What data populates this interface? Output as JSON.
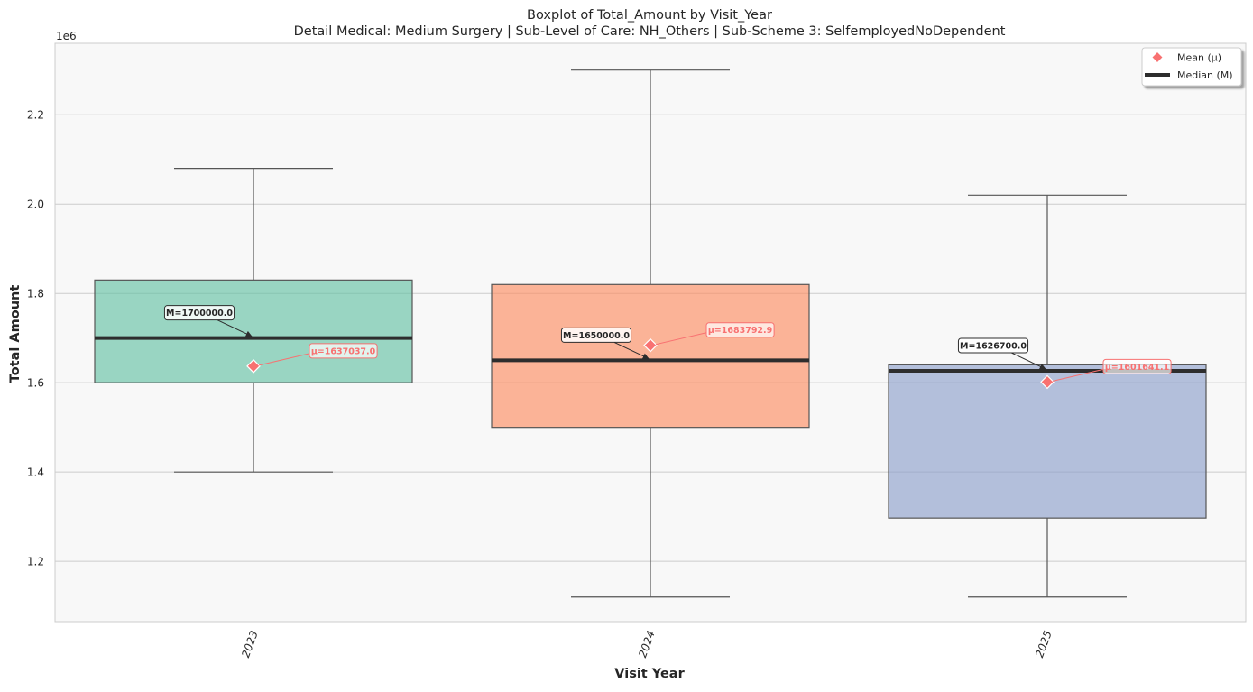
{
  "chart_data": {
    "type": "box",
    "title": "Boxplot of Total_Amount by Visit_Year",
    "subtitle": "Detail Medical: Medium Surgery | Sub-Level of Care: NH_Others | Sub-Scheme 3: SelfemployedNoDependent",
    "xlabel": "Visit Year",
    "ylabel": "Total Amount",
    "y_offset_label": "1e6",
    "ylim": [
      1.065,
      2.36
    ],
    "yticks": [
      1.2,
      1.4,
      1.6,
      1.8,
      2.0,
      2.2
    ],
    "ytick_labels": [
      "1.2",
      "1.4",
      "1.6",
      "1.8",
      "2.0",
      "2.2"
    ],
    "grid": true,
    "legend_position": "top-right",
    "legend": [
      {
        "label": "Mean (μ)",
        "marker": "diamond",
        "color": "#f87171"
      },
      {
        "label": "Median (M)",
        "marker": "line",
        "color": "#2d2d2d"
      }
    ],
    "categories": [
      "2023",
      "2024",
      "2025"
    ],
    "boxes": [
      {
        "category": "2023",
        "whisker_low": 1.4,
        "q1": 1.6,
        "median": 1.7,
        "q3": 1.83,
        "whisker_high": 2.08,
        "mean": 1.637037,
        "color": "#66c2a5",
        "median_label": "M=1700000.0",
        "mean_label": "μ=1637037.0"
      },
      {
        "category": "2024",
        "whisker_low": 1.12,
        "q1": 1.5,
        "median": 1.65,
        "q3": 1.82,
        "whisker_high": 2.3,
        "mean": 1.6837929,
        "color": "#fc8d62",
        "median_label": "M=1650000.0",
        "mean_label": "μ=1683792.9"
      },
      {
        "category": "2025",
        "whisker_low": 1.12,
        "q1": 1.297,
        "median": 1.6267,
        "q3": 1.64,
        "whisker_high": 2.02,
        "mean": 1.6016411,
        "color": "#8da0cb",
        "median_label": "M=1626700.0",
        "mean_label": "μ=1601641.1"
      }
    ]
  }
}
